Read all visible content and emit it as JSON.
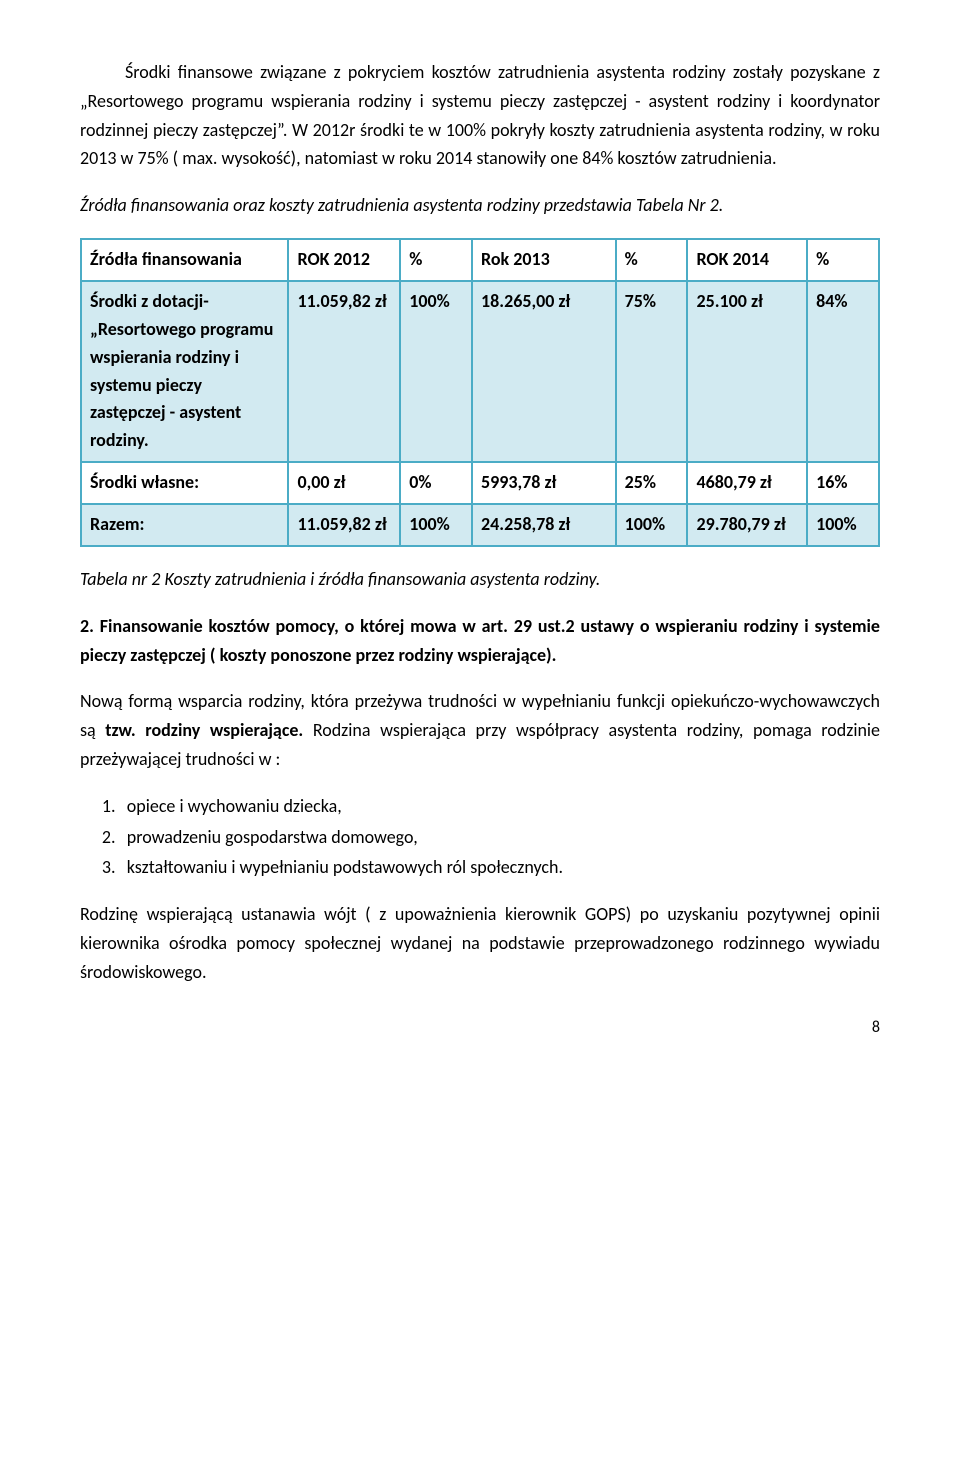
{
  "colors": {
    "border": "#4bacc6",
    "header_bg": "#ffffff",
    "row_alt_bg": "#d2eaf1",
    "text": "#000000"
  },
  "p1": "Środki finansowe związane z pokryciem kosztów  zatrudnienia asystenta rodziny zostały pozyskane z „Resortowego programu  wspierania rodziny i systemu pieczy zastępczej - asystent rodziny i koordynator rodzinnej pieczy zastępczej”. W 2012r środki te w 100% pokryły koszty zatrudnienia asystenta rodziny, w roku 2013 w 75% ( max. wysokość), natomiast w roku 2014 stanowiły one 84%  kosztów zatrudnienia.",
  "p2": "Źródła finansowania oraz koszty zatrudnienia asystenta rodziny przedstawia Tabela Nr 2.",
  "table": {
    "header": [
      "Źródła finansowania",
      "ROK 2012",
      "%",
      "Rok 2013",
      "%",
      "ROK 2014",
      "%"
    ],
    "rows": [
      {
        "bg": "alt",
        "cells": [
          "Środki z dotacji- „Resortowego programu wspierania rodziny i systemu pieczy zastępczej - asystent rodziny.",
          "11.059,82 zł",
          "100%",
          "18.265,00 zł",
          "75%",
          "25.100 zł",
          "84%"
        ]
      },
      {
        "bg": "plain",
        "cells": [
          "Środki własne:",
          "0,00 zł",
          "0%",
          "5993,78 zł",
          "25%",
          "4680,79 zł",
          "16%"
        ]
      },
      {
        "bg": "alt",
        "cells": [
          "Razem:",
          "11.059,82 zł",
          "100%",
          "24.258,78 zł",
          "100%",
          "29.780,79 zł",
          "100%"
        ]
      }
    ]
  },
  "caption": "Tabela nr 2  Koszty zatrudnienia i źródła finansowania asystenta rodziny.",
  "h2a": "2. Finansowanie kosztów pomocy, o której mowa w art. 29 ust.2 ustawy o wspieraniu rodziny i systemie pieczy zastępczej ( koszty ponoszone przez rodziny wspierające).",
  "p3a": "Nową formą wsparcia rodziny, która przeżywa trudności w wypełnianiu funkcji opiekuńczo-wychowawczych są ",
  "p3b": "tzw. rodziny wspierające.",
  "p3c": " Rodzina wspierająca przy współpracy asystenta rodziny, pomaga rodzinie przeżywającej trudności w :",
  "list": [
    "opiece i wychowaniu dziecka,",
    "prowadzeniu gospodarstwa domowego,",
    "kształtowaniu i wypełnianiu podstawowych ról społecznych."
  ],
  "p4": "Rodzinę wspierającą ustanawia wójt ( z upoważnienia kierownik GOPS) po uzyskaniu pozytywnej opinii kierownika ośrodka pomocy społecznej wydanej na podstawie przeprowadzonego rodzinnego wywiadu środowiskowego.",
  "page": "8"
}
